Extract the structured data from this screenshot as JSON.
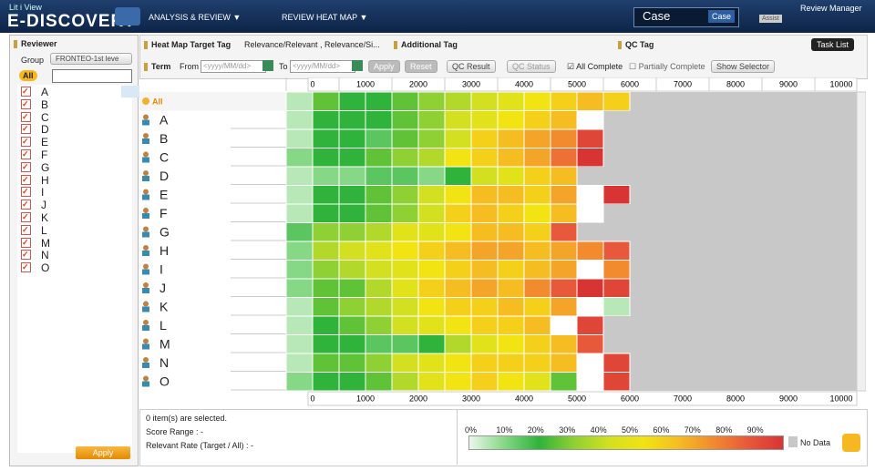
{
  "header": {
    "brand_small": "Lit i View",
    "brand": "E-DISCOVERY",
    "nav": [
      "ANALYSIS & REVIEW ▼",
      "REVIEW HEAT MAP ▼"
    ],
    "case_label": "Case",
    "case_button": "Case",
    "assist": "Assist",
    "role": "Review Manager"
  },
  "reviewer_panel": {
    "title": "Reviewer",
    "group_label": "Group",
    "group_value": "FRONTEO-1st leve",
    "all": "All",
    "names": [
      "A",
      "B",
      "C",
      "D",
      "E",
      "F",
      "G",
      "H",
      "I",
      "J",
      "K",
      "L",
      "M",
      "N",
      "O"
    ],
    "apply": "Apply"
  },
  "toolbar": {
    "heat_map_target_tag": "Heat Map Target Tag",
    "target_value": "Relevance/Relevant , Relevance/Si...",
    "additional_tag": "Additional Tag",
    "qc_tag": "QC Tag",
    "task_list": "Task List",
    "term": "Term",
    "from": "From",
    "to": "To",
    "placeholder": "<yyyy/MM/dd>",
    "apply": "Apply",
    "reset": "Reset",
    "qc_result": "QC Result",
    "qc_status": "QC Status",
    "all_complete": "All Complete",
    "partially_complete": "Partially Complete",
    "show_selector": "Show Selector"
  },
  "heatmap": {
    "type": "heatmap",
    "xlim": [
      0,
      10000
    ],
    "xticks": [
      0,
      1000,
      2000,
      3000,
      4000,
      5000,
      6000,
      7000,
      8000,
      9000,
      10000
    ],
    "zlim": [
      0,
      100
    ],
    "rows": [
      {
        "name": "All",
        "values": [
          5,
          25,
          20,
          20,
          25,
          30,
          35,
          40,
          45,
          50,
          55,
          60,
          55
        ]
      },
      {
        "name": "A",
        "values": [
          5,
          20,
          20,
          20,
          25,
          30,
          40,
          45,
          50,
          55,
          60,
          null
        ]
      },
      {
        "name": "B",
        "values": [
          5,
          20,
          20,
          15,
          25,
          30,
          40,
          55,
          60,
          65,
          70,
          85
        ]
      },
      {
        "name": "C",
        "values": [
          10,
          20,
          20,
          25,
          30,
          35,
          50,
          55,
          60,
          65,
          75,
          90
        ]
      },
      {
        "name": "D",
        "values": [
          5,
          10,
          10,
          15,
          15,
          10,
          20,
          40,
          45,
          55,
          60
        ]
      },
      {
        "name": "E",
        "values": [
          5,
          20,
          20,
          25,
          30,
          40,
          50,
          60,
          60,
          55,
          65,
          null,
          90
        ]
      },
      {
        "name": "F",
        "values": [
          5,
          20,
          20,
          25,
          30,
          40,
          55,
          60,
          55,
          50,
          60,
          null
        ]
      },
      {
        "name": "G",
        "values": [
          15,
          30,
          30,
          35,
          45,
          45,
          50,
          60,
          60,
          55,
          80
        ]
      },
      {
        "name": "H",
        "values": [
          10,
          35,
          40,
          45,
          50,
          55,
          60,
          65,
          65,
          60,
          65,
          70,
          80
        ]
      },
      {
        "name": "I",
        "values": [
          10,
          30,
          35,
          40,
          45,
          50,
          55,
          60,
          55,
          60,
          65,
          null,
          70
        ]
      },
      {
        "name": "J",
        "values": [
          10,
          25,
          25,
          35,
          45,
          55,
          60,
          65,
          60,
          70,
          80,
          90,
          85
        ]
      },
      {
        "name": "K",
        "values": [
          5,
          25,
          30,
          35,
          40,
          50,
          55,
          55,
          60,
          55,
          65,
          null,
          5
        ]
      },
      {
        "name": "L",
        "values": [
          5,
          20,
          25,
          30,
          40,
          45,
          50,
          55,
          55,
          60,
          null,
          85
        ]
      },
      {
        "name": "M",
        "values": [
          5,
          20,
          20,
          15,
          15,
          20,
          35,
          45,
          50,
          55,
          60,
          80
        ]
      },
      {
        "name": "N",
        "values": [
          5,
          25,
          25,
          30,
          40,
          45,
          50,
          55,
          55,
          55,
          60,
          null,
          85
        ]
      },
      {
        "name": "O",
        "values": [
          10,
          20,
          20,
          25,
          35,
          45,
          50,
          55,
          50,
          45,
          25,
          null,
          85
        ]
      }
    ]
  },
  "status": {
    "selected": "0 item(s) are selected.",
    "score_range": "Score Range : -",
    "relevant_rate": "Relevant Rate (Target / All) : -"
  },
  "legend": {
    "labels": [
      "0%",
      "10%",
      "20%",
      "30%",
      "40%",
      "50%",
      "60%",
      "70%",
      "80%",
      "90%"
    ],
    "colors": [
      "#eaf7ea",
      "#86d886",
      "#2fb33a",
      "#8fd034",
      "#d2e021",
      "#f2e312",
      "#f5bd22",
      "#f28a2e",
      "#e8583a",
      "#d83434"
    ],
    "no_data": "No Data"
  }
}
